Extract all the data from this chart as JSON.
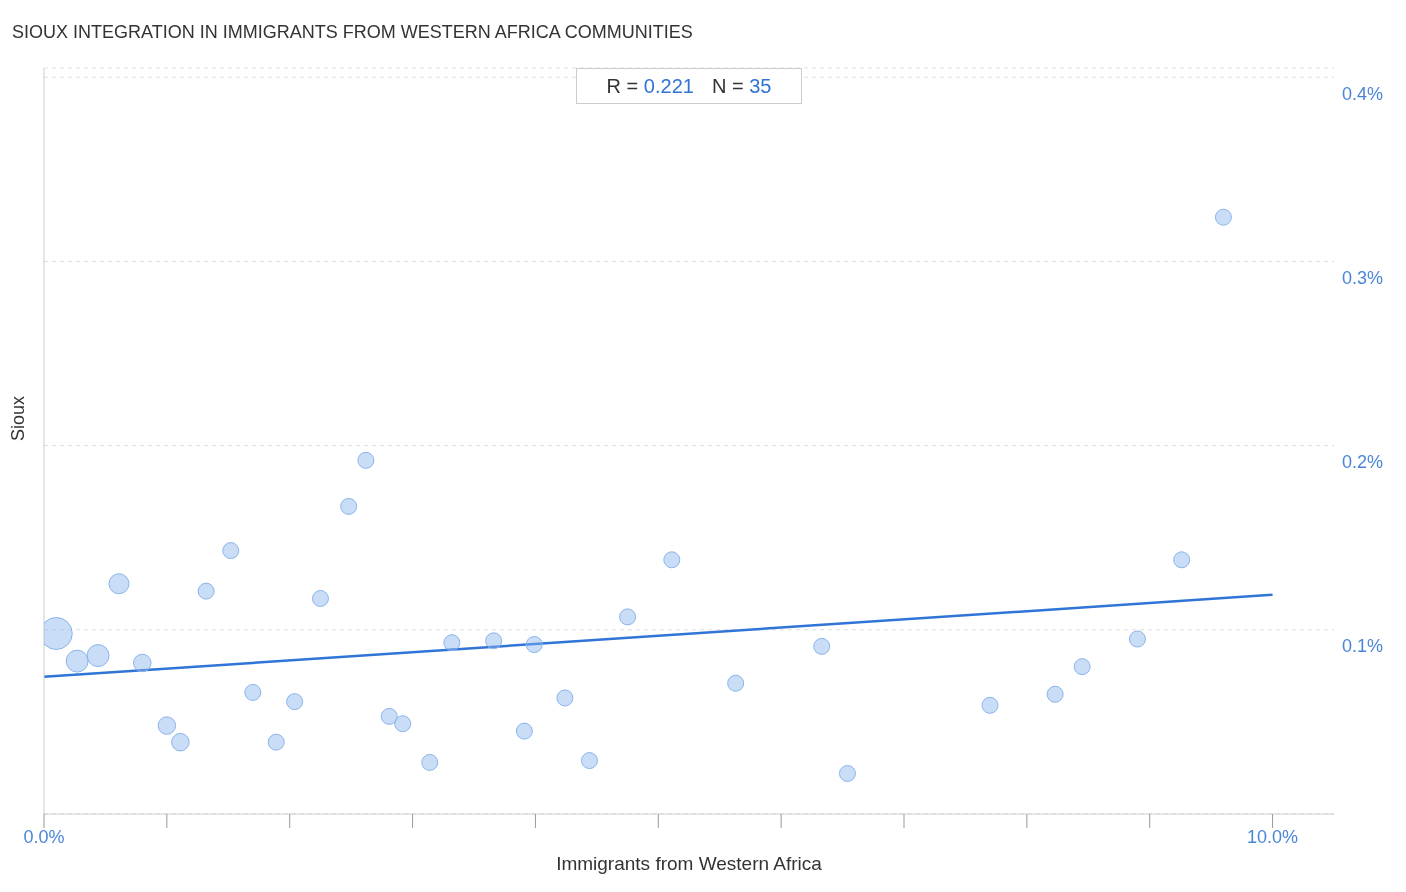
{
  "chart_data": {
    "type": "bubble",
    "title": "SIOUX INTEGRATION IN IMMIGRANTS FROM WESTERN AFRICA COMMUNITIES",
    "xlabel": "Immigrants from Western Africa",
    "ylabel": "Sioux",
    "annotations": [
      "R = 0.221",
      "N = 35"
    ],
    "xlim": [
      0,
      10.5
    ],
    "xticks": [
      {
        "value": 0,
        "label": "0.0%"
      },
      {
        "value": 1,
        "label": null
      },
      {
        "value": 2,
        "label": null
      },
      {
        "value": 3,
        "label": null
      },
      {
        "value": 4,
        "label": null
      },
      {
        "value": 5,
        "label": null
      },
      {
        "value": 6,
        "label": null
      },
      {
        "value": 7,
        "label": null
      },
      {
        "value": 8,
        "label": null
      },
      {
        "value": 9,
        "label": null
      },
      {
        "value": 10,
        "label": "10.0%"
      }
    ],
    "ylim": [
      0,
      0.405
    ],
    "yticks": [
      {
        "value": 0.1,
        "label": "0.1%"
      },
      {
        "value": 0.2,
        "label": "0.2%"
      },
      {
        "value": 0.3,
        "label": "0.3%"
      },
      {
        "value": 0.4,
        "label": "0.4%"
      }
    ],
    "grid": "y",
    "legend": false,
    "line_style": "solid",
    "series": [
      {
        "marker": "circle",
        "color": "#8ab4ec",
        "x": [
          0.1,
          0.27,
          0.44,
          0.61,
          0.8,
          1.0,
          1.11,
          1.32,
          1.52,
          1.7,
          1.89,
          2.04,
          2.25,
          2.48,
          2.62,
          2.81,
          2.92,
          3.14,
          3.32,
          3.66,
          3.91,
          3.99,
          4.24,
          4.44,
          4.75,
          5.11,
          5.63,
          6.33,
          6.54,
          7.7,
          8.23,
          8.45,
          8.9,
          9.26,
          9.6
        ],
        "values": [
          0.098,
          0.083,
          0.086,
          0.125,
          0.082,
          0.048,
          0.039,
          0.121,
          0.143,
          0.066,
          0.039,
          0.061,
          0.117,
          0.167,
          0.192,
          0.053,
          0.049,
          0.028,
          0.093,
          0.094,
          0.045,
          0.092,
          0.063,
          0.029,
          0.107,
          0.138,
          0.071,
          0.091,
          0.022,
          0.059,
          0.065,
          0.08,
          0.095,
          0.138,
          0.324
        ],
        "sizes": [
          1,
          0.47,
          0.47,
          0.39,
          0.3,
          0.3,
          0.3,
          0.25,
          0.25,
          0.25,
          0.25,
          0.25,
          0.25,
          0.25,
          0.25,
          0.25,
          0.25,
          0.25,
          0.25,
          0.25,
          0.25,
          0.25,
          0.25,
          0.25,
          0.25,
          0.25,
          0.25,
          0.25,
          0.25,
          0.25,
          0.25,
          0.25,
          0.25,
          0.25,
          0.25
        ]
      },
      {
        "type": "line",
        "color": "#2f74d6",
        "x": [
          0,
          10
        ],
        "values": [
          0.0745,
          0.119
        ]
      }
    ]
  }
}
